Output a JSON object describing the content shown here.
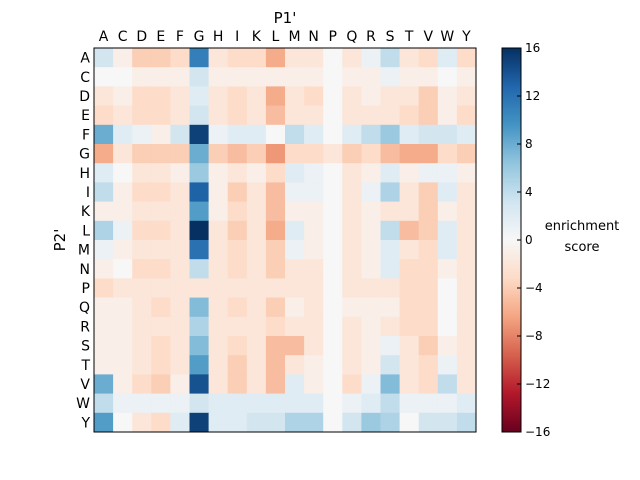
{
  "chart_data": {
    "type": "heatmap",
    "title": "",
    "xlabel": "P1'",
    "ylabel": "P2'",
    "x_categories": [
      "A",
      "C",
      "D",
      "E",
      "F",
      "G",
      "H",
      "I",
      "K",
      "L",
      "M",
      "N",
      "P",
      "Q",
      "R",
      "S",
      "T",
      "V",
      "W",
      "Y"
    ],
    "y_categories": [
      "A",
      "C",
      "D",
      "E",
      "F",
      "G",
      "H",
      "I",
      "K",
      "L",
      "M",
      "N",
      "P",
      "Q",
      "R",
      "S",
      "T",
      "V",
      "W",
      "Y"
    ],
    "x_axis_position": "top",
    "colorbar": {
      "label_line1": "enrichment",
      "label_line2": "score",
      "range": [
        -16,
        16
      ],
      "ticks": [
        16,
        12,
        8,
        4,
        0,
        -4,
        -8,
        -12,
        -16
      ],
      "tick_labels": [
        "16",
        "12",
        "8",
        "4",
        "0",
        "−4",
        "−8",
        "−12",
        "−16"
      ],
      "colormap": "RdBu"
    },
    "grid": false,
    "values": [
      [
        3,
        -1,
        -4,
        -4,
        -3,
        11,
        -2,
        -3,
        -3,
        -6,
        -2,
        -2,
        0,
        -2,
        1,
        4,
        -2,
        -3,
        2,
        -3
      ],
      [
        0,
        0,
        -1,
        -1,
        -1,
        3,
        -1,
        -1,
        -1,
        -1,
        -1,
        -1,
        0,
        -1,
        -1,
        1,
        -1,
        -1,
        0,
        -1
      ],
      [
        -2,
        -1,
        -3,
        -3,
        -2,
        2,
        -2,
        -3,
        -2,
        -6,
        -2,
        -3,
        0,
        -2,
        -1,
        -2,
        -2,
        -4,
        -1,
        -2
      ],
      [
        -3,
        -2,
        -3,
        -3,
        -2,
        3,
        -2,
        -3,
        -2,
        -5,
        -2,
        -2,
        0,
        -2,
        -2,
        -2,
        -3,
        -4,
        -1,
        -3
      ],
      [
        8,
        2,
        1,
        -1,
        3,
        15,
        1,
        2,
        2,
        0,
        4,
        2,
        0,
        2,
        4,
        6,
        2,
        3,
        3,
        2
      ],
      [
        -6,
        -2,
        -4,
        -4,
        -4,
        8,
        -4,
        -5,
        -4,
        -7,
        -3,
        -3,
        -2,
        -4,
        -3,
        -5,
        -6,
        -6,
        -3,
        -4
      ],
      [
        2,
        0,
        -2,
        -2,
        -1,
        6,
        -1,
        -2,
        -1,
        -3,
        2,
        1,
        0,
        -2,
        -1,
        2,
        -1,
        1,
        1,
        -1
      ],
      [
        4,
        -1,
        -3,
        -3,
        -2,
        13,
        -1,
        -4,
        -2,
        -5,
        1,
        1,
        0,
        -2,
        1,
        5,
        -2,
        -4,
        2,
        -2
      ],
      [
        -1,
        -1,
        -2,
        -2,
        -2,
        9,
        -1,
        -3,
        -2,
        -5,
        -1,
        -1,
        0,
        -2,
        -1,
        -2,
        -2,
        -4,
        -1,
        -2
      ],
      [
        5,
        1,
        -3,
        -3,
        -2,
        16,
        -2,
        -4,
        -2,
        -6,
        2,
        -1,
        0,
        -2,
        -1,
        4,
        -5,
        -4,
        2,
        -2
      ],
      [
        1,
        -1,
        -2,
        -2,
        -2,
        12,
        -2,
        -3,
        -2,
        -4,
        1,
        -1,
        0,
        -2,
        -1,
        2,
        -2,
        -3,
        2,
        -2
      ],
      [
        -1,
        0,
        -3,
        -3,
        -2,
        4,
        -2,
        -3,
        -2,
        -4,
        -2,
        -2,
        0,
        -2,
        -1,
        2,
        -3,
        -3,
        -1,
        -2
      ],
      [
        -3,
        -2,
        -2,
        -2,
        -2,
        -2,
        -2,
        -2,
        -2,
        -2,
        -2,
        -2,
        0,
        -2,
        -2,
        -2,
        -3,
        -3,
        0,
        -2
      ],
      [
        -1,
        -1,
        -2,
        -3,
        -2,
        7,
        -2,
        -3,
        -2,
        -4,
        -1,
        -2,
        0,
        -1,
        -1,
        -1,
        -3,
        -3,
        0,
        -2
      ],
      [
        -1,
        -1,
        -2,
        -2,
        -2,
        5,
        -2,
        -2,
        -2,
        -3,
        -2,
        -2,
        0,
        -2,
        -1,
        -2,
        -3,
        -3,
        0,
        -2
      ],
      [
        -1,
        -1,
        -2,
        -3,
        -2,
        7,
        -2,
        -3,
        -2,
        -5,
        -5,
        -2,
        0,
        -2,
        -1,
        1,
        -2,
        -4,
        -1,
        -2
      ],
      [
        -1,
        -1,
        -2,
        -3,
        -2,
        9,
        -2,
        -4,
        -2,
        -5,
        -2,
        -1,
        0,
        -2,
        -1,
        3,
        -2,
        -3,
        1,
        -2
      ],
      [
        8,
        -1,
        -3,
        -4,
        -1,
        14,
        -2,
        -4,
        -2,
        -5,
        2,
        -1,
        0,
        -3,
        1,
        7,
        -2,
        -3,
        4,
        -2
      ],
      [
        4,
        1,
        1,
        1,
        1,
        3,
        2,
        2,
        2,
        2,
        2,
        2,
        0,
        1,
        2,
        4,
        1,
        1,
        1,
        2
      ],
      [
        9,
        0,
        -2,
        -3,
        2,
        15,
        2,
        2,
        3,
        3,
        5,
        5,
        0,
        3,
        6,
        5,
        0,
        3,
        3,
        4
      ]
    ]
  }
}
